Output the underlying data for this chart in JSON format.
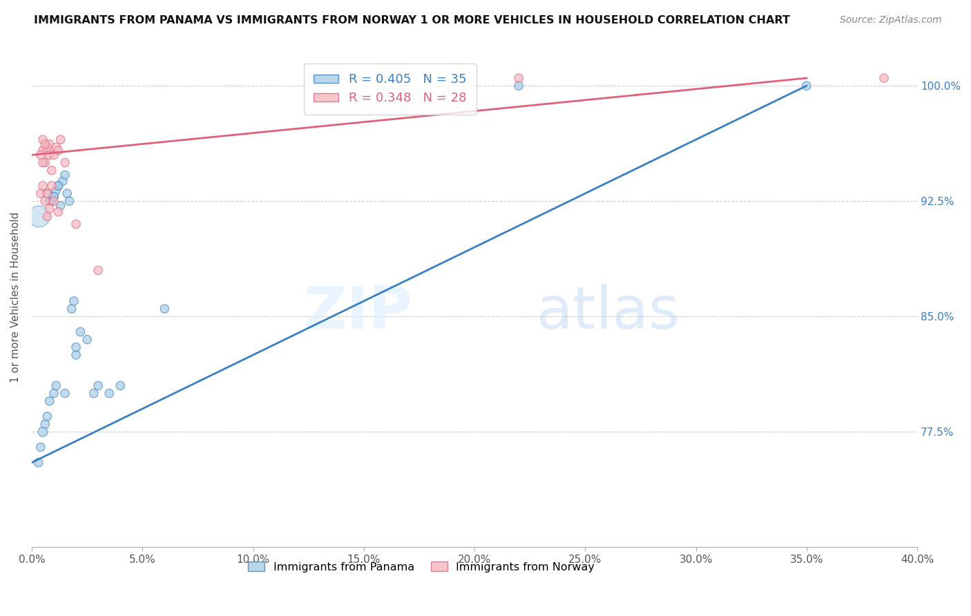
{
  "title": "IMMIGRANTS FROM PANAMA VS IMMIGRANTS FROM NORWAY 1 OR MORE VEHICLES IN HOUSEHOLD CORRELATION CHART",
  "source": "Source: ZipAtlas.com",
  "ylabel": "1 or more Vehicles in Household",
  "xlim": [
    0.0,
    40.0
  ],
  "ylim": [
    70.0,
    102.5
  ],
  "yticks": [
    77.5,
    85.0,
    92.5,
    100.0
  ],
  "xticks": [
    0.0,
    5.0,
    10.0,
    15.0,
    20.0,
    25.0,
    30.0,
    35.0,
    40.0
  ],
  "panama_R": 0.405,
  "panama_N": 35,
  "norway_R": 0.348,
  "norway_N": 28,
  "panama_color": "#a8cce4",
  "norway_color": "#f4b8c1",
  "panama_line_color": "#3a7fc1",
  "norway_line_color": "#e0607a",
  "background_color": "#ffffff",
  "panama_line_x0": 0.0,
  "panama_line_y0": 75.5,
  "panama_line_x1": 35.0,
  "panama_line_y1": 100.0,
  "norway_line_x0": 0.0,
  "norway_line_y0": 95.5,
  "norway_line_x1": 35.0,
  "norway_line_y1": 100.5,
  "panama_x": [
    0.5,
    0.6,
    0.7,
    0.7,
    0.8,
    0.9,
    1.0,
    1.1,
    1.1,
    1.2,
    1.3,
    1.4,
    1.5,
    1.5,
    1.6,
    1.7,
    1.8,
    1.9,
    2.0,
    2.2,
    2.5,
    2.8,
    3.0,
    3.5,
    4.0,
    0.3,
    0.4,
    0.8,
    1.0,
    1.0,
    1.2,
    2.0,
    6.0,
    22.0,
    35.0
  ],
  "panama_y": [
    77.5,
    78.0,
    78.5,
    93.0,
    79.5,
    92.5,
    92.8,
    93.2,
    80.5,
    93.5,
    92.2,
    93.8,
    80.0,
    94.2,
    93.0,
    92.5,
    85.5,
    86.0,
    82.5,
    84.0,
    83.5,
    80.0,
    80.5,
    80.0,
    80.5,
    75.5,
    76.5,
    92.5,
    92.8,
    80.0,
    93.5,
    83.0,
    85.5,
    100.0,
    100.0
  ],
  "panama_sizes": [
    100,
    80,
    80,
    80,
    80,
    80,
    80,
    80,
    80,
    80,
    80,
    80,
    80,
    80,
    80,
    80,
    80,
    80,
    80,
    80,
    80,
    80,
    80,
    80,
    80,
    80,
    80,
    80,
    80,
    80,
    80,
    80,
    80,
    80,
    80
  ],
  "norway_x": [
    0.5,
    0.5,
    0.6,
    0.7,
    0.8,
    0.8,
    0.9,
    1.0,
    1.1,
    1.2,
    1.3,
    1.5,
    0.4,
    0.5,
    0.6,
    0.7,
    0.7,
    0.8,
    0.9,
    1.0,
    1.2,
    2.0,
    0.4,
    0.5,
    0.6,
    3.0,
    22.0,
    38.5
  ],
  "norway_y": [
    95.8,
    96.5,
    95.0,
    96.0,
    95.5,
    96.2,
    94.5,
    95.5,
    96.0,
    95.8,
    96.5,
    95.0,
    93.0,
    93.5,
    92.5,
    93.0,
    91.5,
    92.0,
    93.5,
    92.5,
    91.8,
    91.0,
    95.5,
    95.0,
    96.2,
    88.0,
    100.5,
    100.5
  ],
  "norway_sizes": [
    80,
    80,
    80,
    80,
    80,
    80,
    80,
    80,
    80,
    80,
    80,
    80,
    80,
    80,
    80,
    80,
    80,
    80,
    80,
    80,
    80,
    80,
    80,
    80,
    80,
    80,
    80,
    80
  ],
  "large_panama_x": 0.3,
  "large_panama_y": 91.5,
  "large_panama_size": 500
}
